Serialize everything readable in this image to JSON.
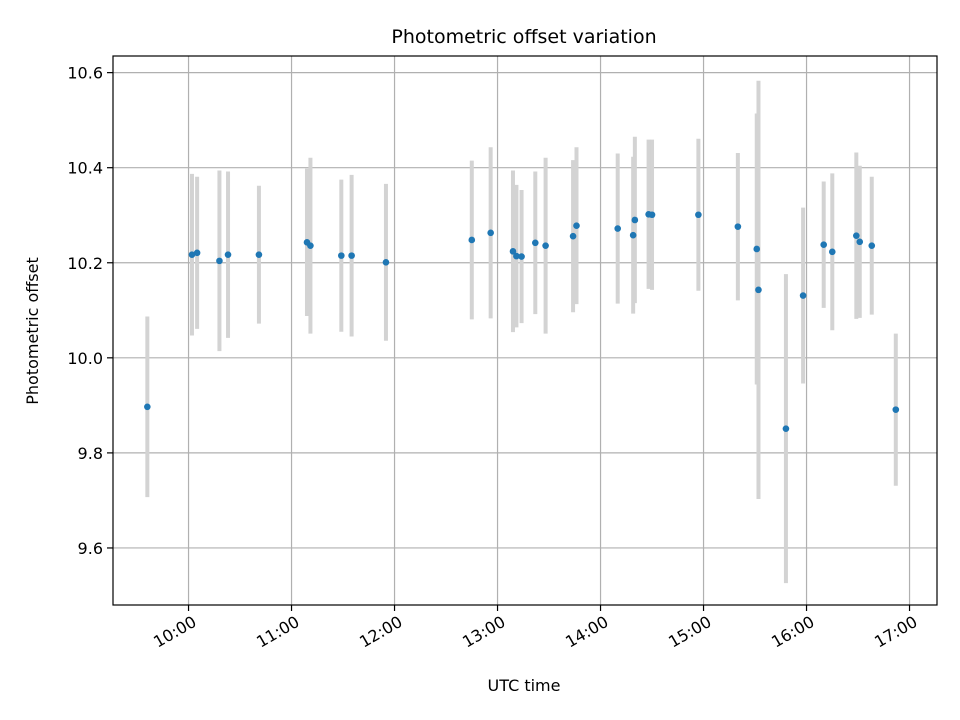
{
  "chart_data": {
    "type": "scatter",
    "title": "Photometric offset variation",
    "xlabel": "UTC time",
    "ylabel": "Photometric offset",
    "x_tick_labels": [
      "10:00",
      "11:00",
      "12:00",
      "13:00",
      "14:00",
      "15:00",
      "16:00",
      "17:00"
    ],
    "y_tick_labels": [
      "9.6",
      "9.8",
      "10.0",
      "10.2",
      "10.4",
      "10.6"
    ],
    "xlim": [
      "09:16",
      "17:16"
    ],
    "ylim": [
      9.48,
      10.635
    ],
    "grid": true,
    "colors": {
      "point": "#1f77b4",
      "errorbar": "#d3d3d3",
      "grid": "#b0b0b0"
    },
    "points": [
      {
        "x": "09:36",
        "y": 9.897,
        "err": 0.19
      },
      {
        "x": "10:02",
        "y": 10.217,
        "err": 0.17
      },
      {
        "x": "10:05",
        "y": 10.221,
        "err": 0.16
      },
      {
        "x": "10:18",
        "y": 10.204,
        "err": 0.19
      },
      {
        "x": "10:23",
        "y": 10.217,
        "err": 0.175
      },
      {
        "x": "10:41",
        "y": 10.217,
        "err": 0.145
      },
      {
        "x": "11:09",
        "y": 10.243,
        "err": 0.155
      },
      {
        "x": "11:11",
        "y": 10.236,
        "err": 0.185
      },
      {
        "x": "11:29",
        "y": 10.215,
        "err": 0.16
      },
      {
        "x": "11:35",
        "y": 10.215,
        "err": 0.17
      },
      {
        "x": "11:55",
        "y": 10.201,
        "err": 0.165
      },
      {
        "x": "12:45",
        "y": 10.248,
        "err": 0.167
      },
      {
        "x": "12:56",
        "y": 10.263,
        "err": 0.18
      },
      {
        "x": "13:09",
        "y": 10.224,
        "err": 0.17
      },
      {
        "x": "13:11",
        "y": 10.214,
        "err": 0.15
      },
      {
        "x": "13:14",
        "y": 10.213,
        "err": 0.14
      },
      {
        "x": "13:22",
        "y": 10.242,
        "err": 0.15
      },
      {
        "x": "13:28",
        "y": 10.236,
        "err": 0.185
      },
      {
        "x": "13:44",
        "y": 10.256,
        "err": 0.16
      },
      {
        "x": "13:46",
        "y": 10.278,
        "err": 0.165
      },
      {
        "x": "14:10",
        "y": 10.272,
        "err": 0.158
      },
      {
        "x": "14:19",
        "y": 10.258,
        "err": 0.165
      },
      {
        "x": "14:20",
        "y": 10.29,
        "err": 0.175
      },
      {
        "x": "14:28",
        "y": 10.302,
        "err": 0.157
      },
      {
        "x": "14:30",
        "y": 10.301,
        "err": 0.158
      },
      {
        "x": "14:57",
        "y": 10.301,
        "err": 0.16
      },
      {
        "x": "15:20",
        "y": 10.276,
        "err": 0.155
      },
      {
        "x": "15:31",
        "y": 10.229,
        "err": 0.285
      },
      {
        "x": "15:32",
        "y": 10.143,
        "err": 0.44
      },
      {
        "x": "15:48",
        "y": 9.851,
        "err": 0.325
      },
      {
        "x": "15:58",
        "y": 10.131,
        "err": 0.185
      },
      {
        "x": "16:10",
        "y": 10.238,
        "err": 0.133
      },
      {
        "x": "16:15",
        "y": 10.223,
        "err": 0.165
      },
      {
        "x": "16:29",
        "y": 10.257,
        "err": 0.175
      },
      {
        "x": "16:31",
        "y": 10.244,
        "err": 0.16
      },
      {
        "x": "16:38",
        "y": 10.236,
        "err": 0.145
      },
      {
        "x": "16:52",
        "y": 9.891,
        "err": 0.16
      }
    ]
  }
}
